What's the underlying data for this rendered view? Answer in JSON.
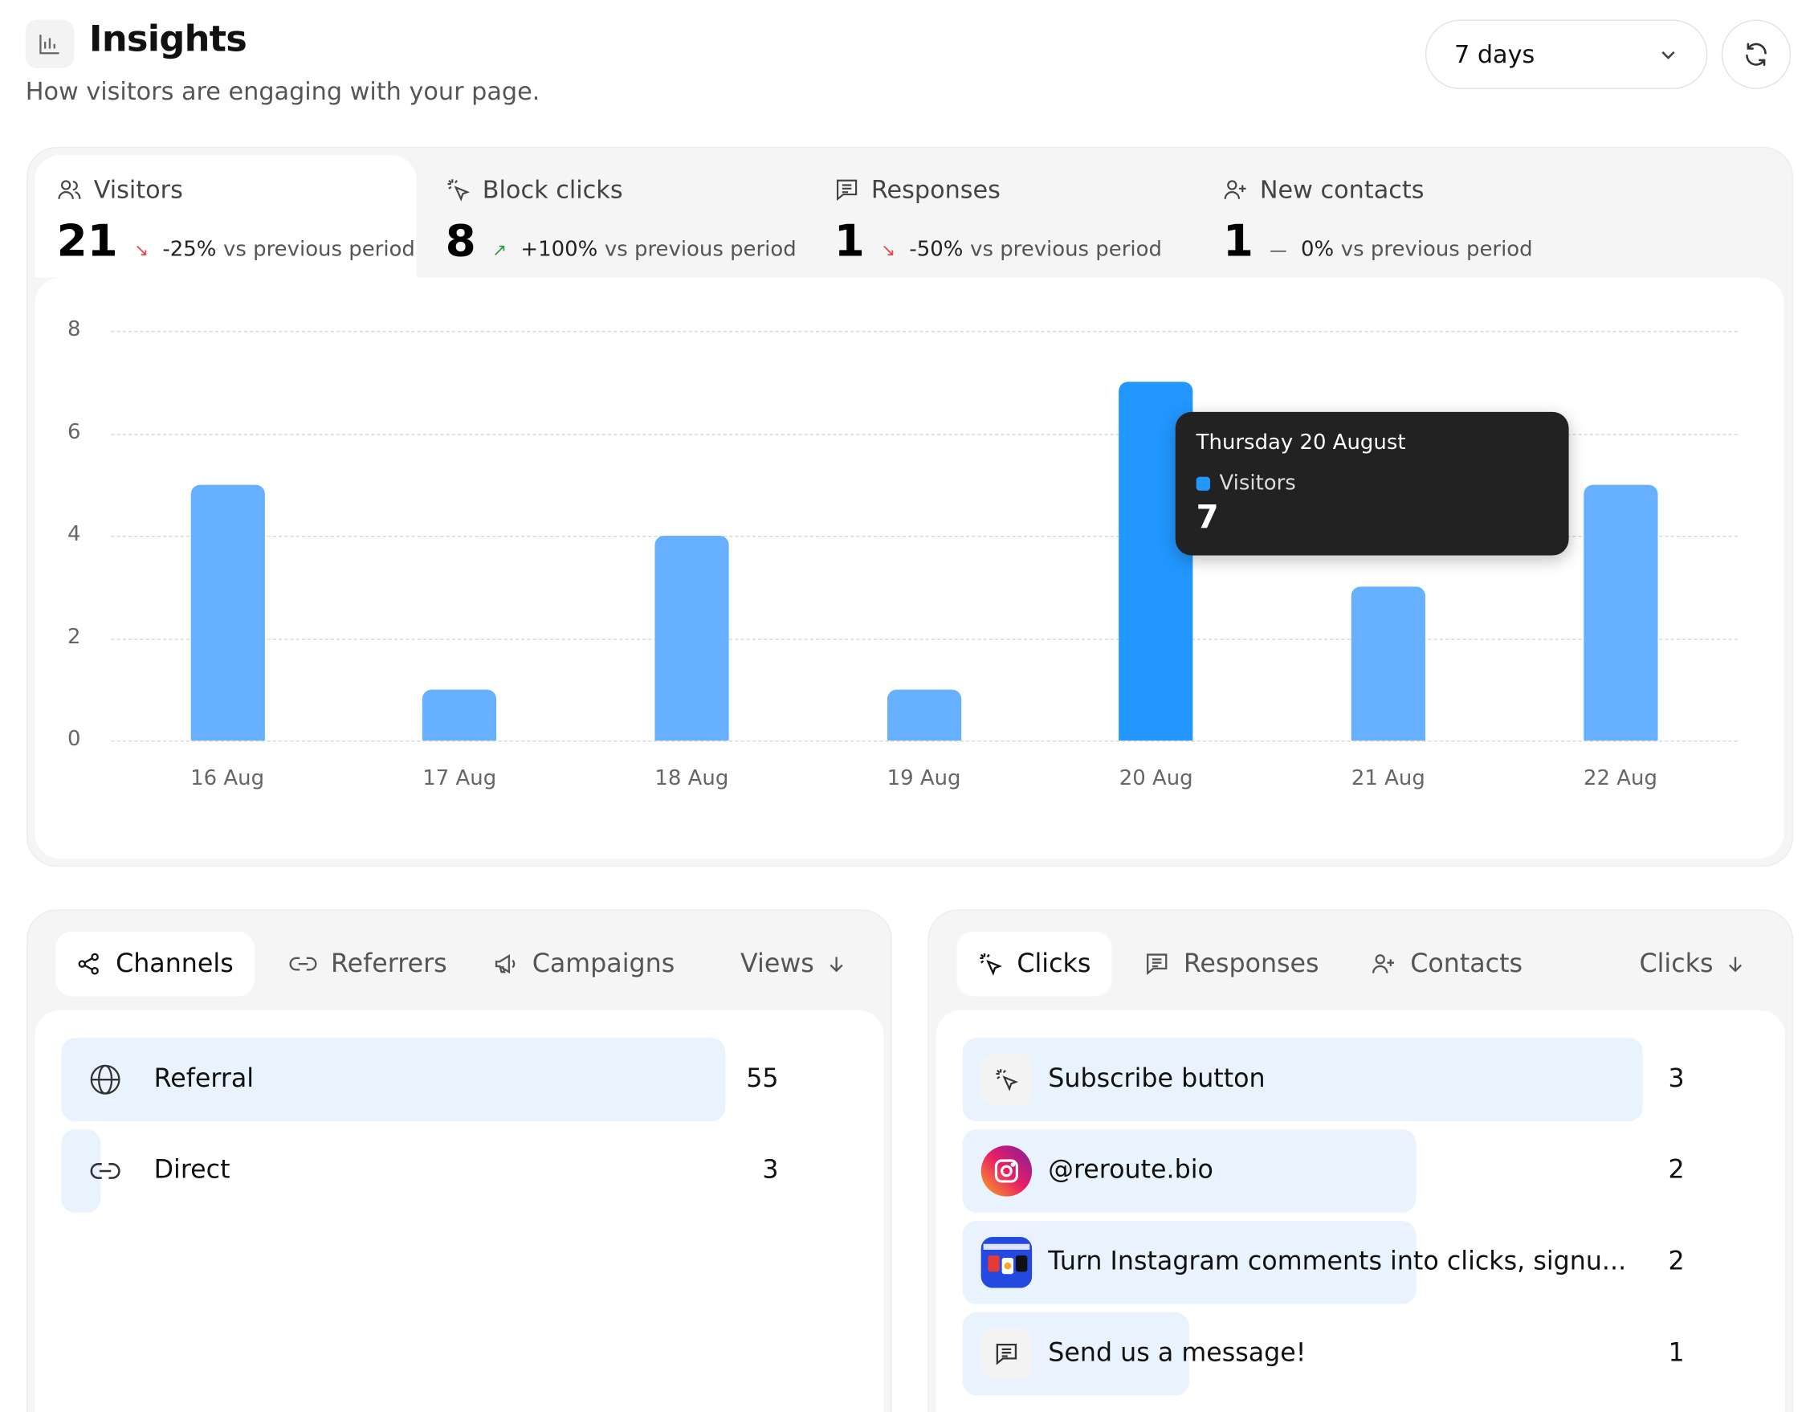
{
  "header": {
    "icon": "bar-chart-icon",
    "title": "Insights",
    "subtitle": "How visitors are engaging with your page.",
    "range_value": "7 days",
    "refresh_icon": "refresh-icon"
  },
  "metrics": [
    {
      "label": "Visitors",
      "icon": "users-icon",
      "value": "21",
      "trend": "down",
      "change": "-25%",
      "suffix": "vs previous period"
    },
    {
      "label": "Block clicks",
      "icon": "click-icon",
      "value": "8",
      "trend": "up",
      "change": "+100%",
      "suffix": "vs previous period"
    },
    {
      "label": "Responses",
      "icon": "message-icon",
      "value": "1",
      "trend": "down",
      "change": "-50%",
      "suffix": "vs previous period"
    },
    {
      "label": "New contacts",
      "icon": "user-plus-icon",
      "value": "1",
      "trend": "flat",
      "change": "0%",
      "suffix": "vs previous period"
    }
  ],
  "colors": {
    "bar": "#66b0ff",
    "bar_highlight": "#2297ff",
    "trend_down": "#e5484d",
    "trend_up": "#2f9e44",
    "trend_flat": "#444444"
  },
  "chart_data": {
    "type": "bar",
    "categories": [
      "16 Aug",
      "17 Aug",
      "18 Aug",
      "19 Aug",
      "20 Aug",
      "21 Aug",
      "22 Aug"
    ],
    "series": [
      {
        "name": "Visitors",
        "values": [
          5,
          1,
          4,
          1,
          7,
          3,
          5
        ]
      }
    ],
    "yticks": [
      "0",
      "2",
      "4",
      "6",
      "8"
    ],
    "ylim": [
      0,
      8
    ],
    "grid": true,
    "highlight_index": 4
  },
  "tooltip": {
    "date": "Thursday 20 August",
    "series": "Visitors",
    "value": "7"
  },
  "traffic": {
    "tabs": [
      {
        "label": "Channels",
        "icon": "share-icon"
      },
      {
        "label": "Referrers",
        "icon": "link-icon"
      },
      {
        "label": "Campaigns",
        "icon": "megaphone-icon"
      }
    ],
    "sort_label": "Views",
    "rows": [
      {
        "label": "Referral",
        "count": "55",
        "icon": "globe-icon",
        "fraction": 1.0
      },
      {
        "label": "Direct",
        "count": "3",
        "icon": "link-icon",
        "fraction": 0.055
      }
    ]
  },
  "engagement": {
    "tabs": [
      {
        "label": "Clicks",
        "icon": "click-icon"
      },
      {
        "label": "Responses",
        "icon": "message-icon"
      },
      {
        "label": "Contacts",
        "icon": "user-plus-icon"
      }
    ],
    "sort_label": "Clicks",
    "rows": [
      {
        "label": "Subscribe button",
        "count": "3",
        "icon": "click-icon",
        "fraction": 1.0
      },
      {
        "label": "@reroute.bio",
        "count": "2",
        "icon": "instagram-icon",
        "fraction": 0.667
      },
      {
        "label": "Turn Instagram comments into clicks, signu...",
        "count": "2",
        "icon": "thumbnail-image",
        "fraction": 0.667
      },
      {
        "label": "Send us a message!",
        "count": "1",
        "icon": "message-icon",
        "fraction": 0.333
      }
    ]
  }
}
